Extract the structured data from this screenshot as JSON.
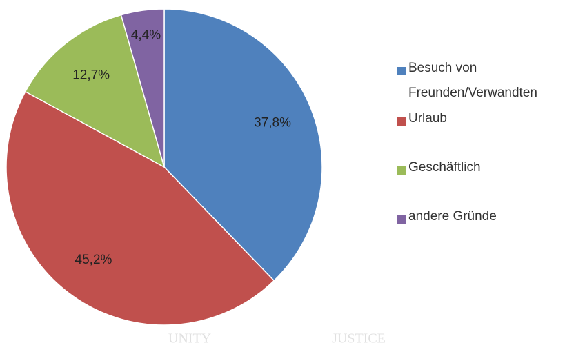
{
  "chart_data": {
    "type": "pie",
    "categories": [
      "Besuch von Freunden/Verwandten",
      "Urlaub",
      "Geschäftlich",
      "andere Gründe"
    ],
    "values": [
      37.8,
      45.2,
      12.7,
      4.4
    ],
    "value_labels": [
      "37,8%",
      "45,2%",
      "12,7%",
      "4,4%"
    ],
    "colors": [
      "#4f81bd",
      "#c0504d",
      "#9bbb59",
      "#8064a2"
    ],
    "legend": "right",
    "annotations": [
      "UNITY",
      "JUSTICE"
    ]
  }
}
